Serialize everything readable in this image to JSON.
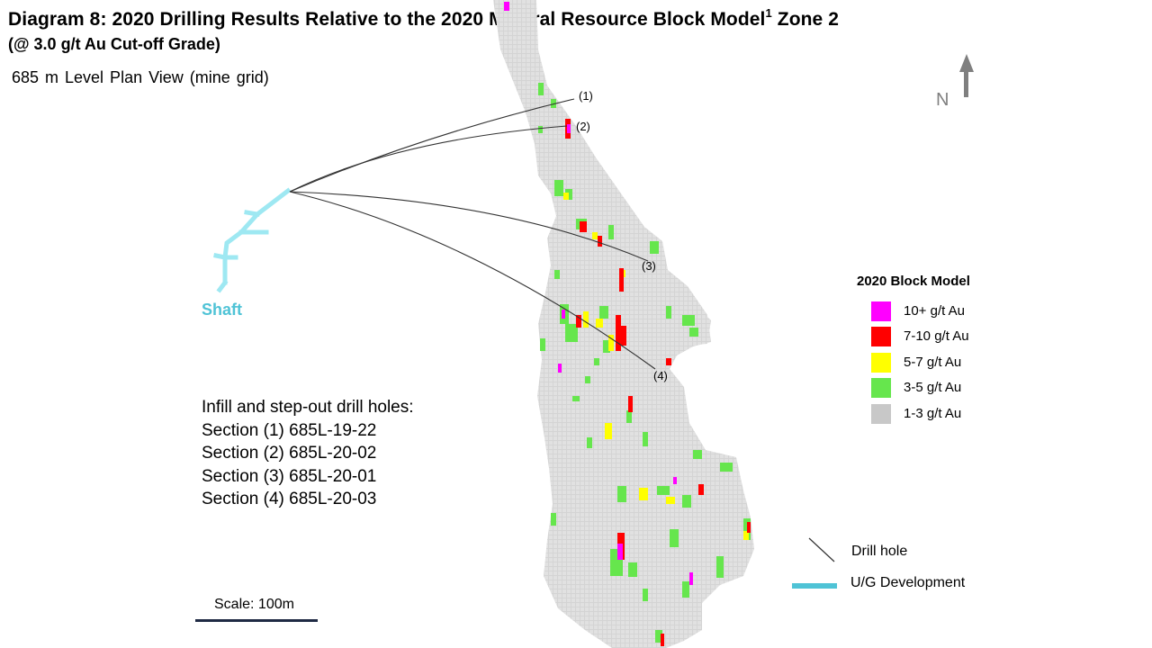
{
  "title": {
    "main": "Diagram 8: 2020 Drilling Results Relative to the 2020 Mineral Resource Block Model",
    "superscript": "1",
    "suffix": "Zone 2",
    "subtitle": "(@ 3.0 g/t Au Cut-off Grade)"
  },
  "level_view": "685 m Level Plan View (mine grid)",
  "shaft_label": "Shaft",
  "north_label": "N",
  "hole_labels": [
    "(1)",
    "(2)",
    "(3)",
    "(4)"
  ],
  "info": {
    "heading": "Infill and step-out drill holes:",
    "sections": [
      "Section (1) 685L-19-22",
      "Section (2) 685L-20-02",
      "Section (3) 685L-20-01",
      "Section (4) 685L-20-03"
    ]
  },
  "legend": {
    "title": "2020 Block Model",
    "items": [
      {
        "label": "10+ g/t Au",
        "color": "#ff00ff"
      },
      {
        "label": "7-10 g/t Au",
        "color": "#ff0000"
      },
      {
        "label": "5-7 g/t Au",
        "color": "#ffff00"
      },
      {
        "label": "3-5 g/t Au",
        "color": "#66e64d"
      },
      {
        "label": "1-3 g/t Au",
        "color": "#c8c8c8"
      }
    ]
  },
  "key": {
    "drill_hole": "Drill hole",
    "ug_development": "U/G Development",
    "ug_color": "#4fc3d6"
  },
  "scale_label": "Scale: 100m"
}
